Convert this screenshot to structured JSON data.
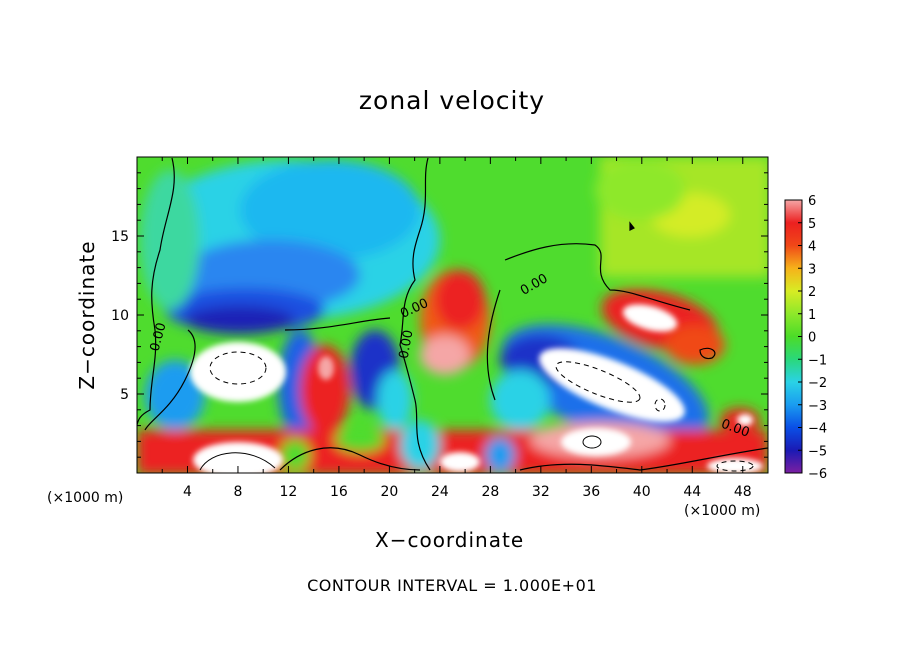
{
  "chart_data": {
    "type": "heatmap",
    "title": "zonal velocity",
    "xlabel": "X−coordinate",
    "ylabel": "Z−coordinate",
    "x_unit_left": "(×1000 m)",
    "x_unit_right": "(×1000 m)",
    "footer": "CONTOUR INTERVAL = 1.000E+01",
    "xlim": [
      0,
      50
    ],
    "ylim": [
      0,
      20
    ],
    "x_ticks": [
      4,
      8,
      12,
      16,
      20,
      24,
      28,
      32,
      36,
      40,
      44,
      48
    ],
    "x_tick_labels": [
      "4",
      "8",
      "12",
      "16",
      "20",
      "24",
      "28",
      "32",
      "36",
      "40",
      "44",
      "48"
    ],
    "y_ticks": [
      5,
      10,
      15
    ],
    "y_tick_labels": [
      "5",
      "10",
      "15"
    ],
    "colorbar": {
      "min": -6,
      "max": 6,
      "ticks": [
        6,
        5,
        4,
        3,
        2,
        1,
        0,
        -1,
        -2,
        -3,
        -4,
        -5,
        -6
      ],
      "tick_labels": [
        "6",
        "5",
        "4",
        "3",
        "2",
        "1",
        "0",
        "−1",
        "−2",
        "−3",
        "−4",
        "−5",
        "−6"
      ],
      "colors": [
        "#7b1fa2",
        "#1a1ab4",
        "#0a4fe6",
        "#1a9cf0",
        "#2ad2e6",
        "#2ad87a",
        "#4cdc28",
        "#8ee82a",
        "#d8ec24",
        "#f6b21a",
        "#f04818",
        "#ec2020",
        "#f5a6a6"
      ]
    },
    "contour_labels": [
      "0.00",
      "0.00",
      "0.00",
      "0.00",
      "0.00"
    ],
    "grid": false
  }
}
